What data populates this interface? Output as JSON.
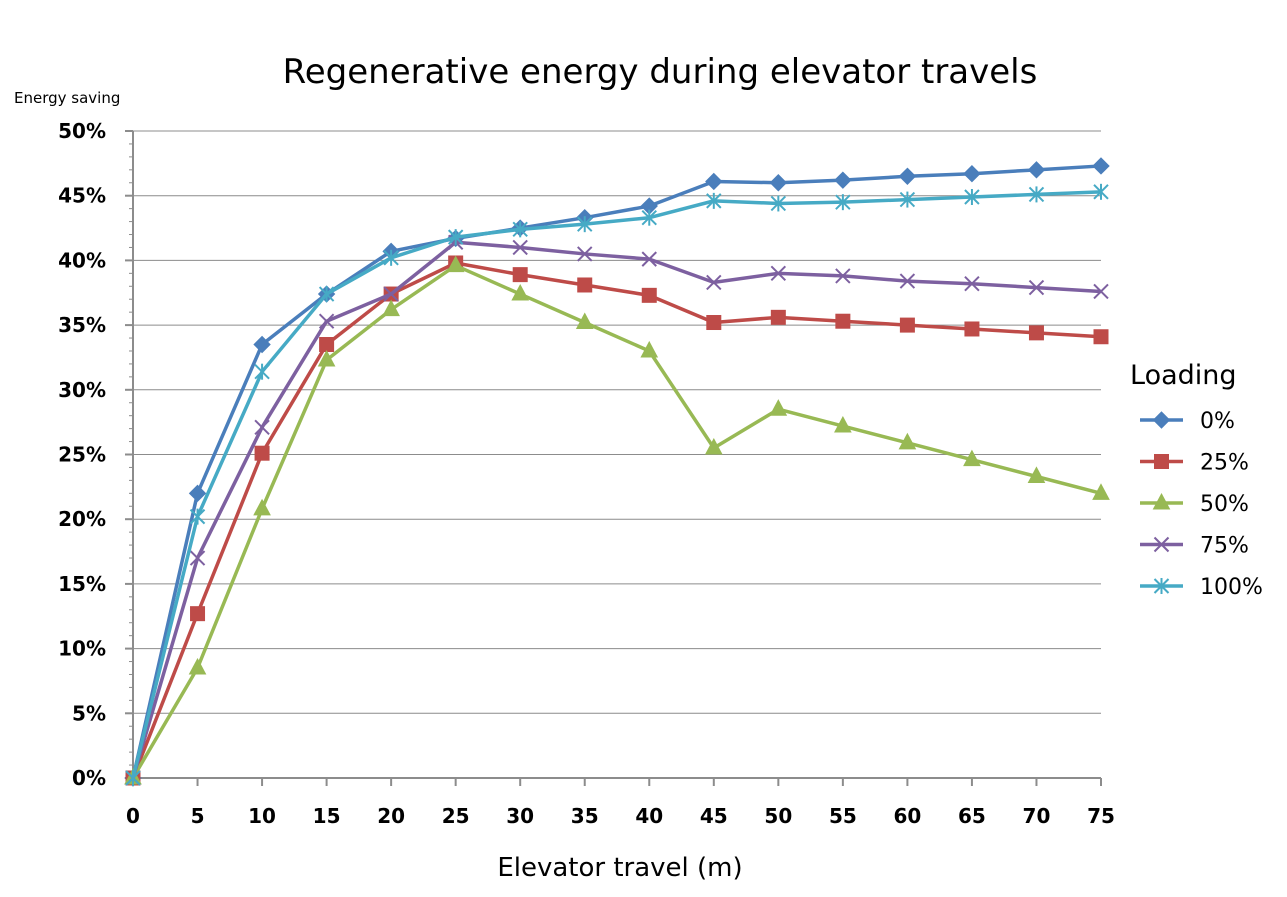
{
  "chart_data": {
    "type": "line",
    "title": "Regenerative energy during elevator travels",
    "xlabel": "Elevator travel (m)",
    "ylabel": "Energy saving",
    "x": [
      0,
      5,
      10,
      15,
      20,
      25,
      30,
      35,
      40,
      45,
      50,
      55,
      60,
      65,
      70,
      75
    ],
    "x_tick_labels": [
      "0",
      "5",
      "10",
      "15",
      "20",
      "25",
      "30",
      "35",
      "40",
      "45",
      "50",
      "55",
      "60",
      "65",
      "70",
      "75"
    ],
    "y_tick_labels": [
      "0%",
      "5%",
      "10%",
      "15%",
      "20%",
      "25%",
      "30%",
      "35%",
      "40%",
      "45%",
      "50%"
    ],
    "ylim": [
      0,
      50
    ],
    "grid": "horizontal",
    "legend": {
      "title": "Loading",
      "position": "right"
    },
    "series": [
      {
        "name": "0%",
        "marker": "diamond",
        "color": "#4a7ebb",
        "values": [
          0,
          22.0,
          33.5,
          37.4,
          40.7,
          41.7,
          42.5,
          43.3,
          44.2,
          46.1,
          46.0,
          46.2,
          46.5,
          46.7,
          47.0,
          47.3
        ]
      },
      {
        "name": "25%",
        "marker": "square",
        "color": "#be4b48",
        "values": [
          0,
          12.7,
          25.1,
          33.5,
          37.4,
          39.8,
          38.9,
          38.1,
          37.3,
          35.2,
          35.6,
          35.3,
          35.0,
          34.7,
          34.4,
          34.1
        ]
      },
      {
        "name": "50%",
        "marker": "triangle",
        "color": "#98b954",
        "values": [
          0,
          8.5,
          20.8,
          32.3,
          36.2,
          39.6,
          37.4,
          35.2,
          33.0,
          25.5,
          28.5,
          27.2,
          25.9,
          24.6,
          23.3,
          22.0
        ]
      },
      {
        "name": "75%",
        "marker": "x",
        "color": "#7d60a0",
        "values": [
          0,
          17.0,
          27.1,
          35.3,
          37.4,
          41.4,
          41.0,
          40.5,
          40.1,
          38.3,
          39.0,
          38.8,
          38.4,
          38.2,
          37.9,
          37.6
        ]
      },
      {
        "name": "100%",
        "marker": "star",
        "color": "#46aac5",
        "values": [
          0,
          20.2,
          31.4,
          37.4,
          40.2,
          41.8,
          42.4,
          42.8,
          43.3,
          44.6,
          44.4,
          44.5,
          44.7,
          44.9,
          45.1,
          45.3
        ]
      }
    ]
  }
}
